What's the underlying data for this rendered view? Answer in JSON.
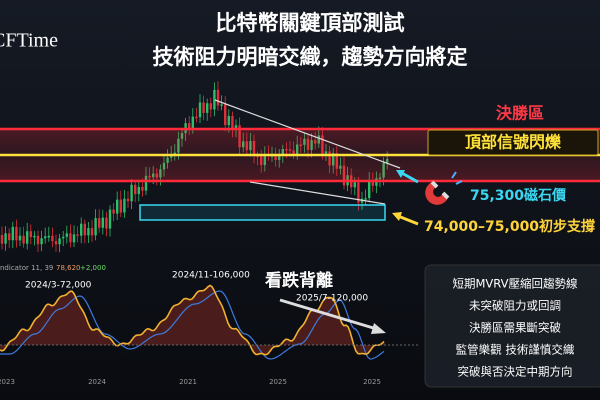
{
  "header": {
    "logo": "CFTime",
    "title_lines": [
      "比特幣關鍵頂部測試",
      "技術阻力明暗交織，趨勢方向將定"
    ]
  },
  "annotations": {
    "zone": "決勝區",
    "signal": "頂部信號閃爍",
    "magnet": "75,300磁石價",
    "support": "74,000–75,000初步支撐",
    "divergence": "看跌背離",
    "peaks": [
      "2024/3-72,000",
      "2024/11-106,000",
      "2025/7-120,000"
    ],
    "indicator": [
      "ndicator 11, 39",
      "78,620",
      "+2,000"
    ]
  },
  "x_labels": [
    "2023",
    "2024",
    "2021",
    "2025",
    "2025"
  ],
  "summary": [
    "短期MVRV壓縮回趨勢線",
    "未突破阻力或回調",
    "決勝區需果斷突破",
    "監管樂觀 技術謹慎交織",
    "突破與否決定中期方向"
  ]
}
